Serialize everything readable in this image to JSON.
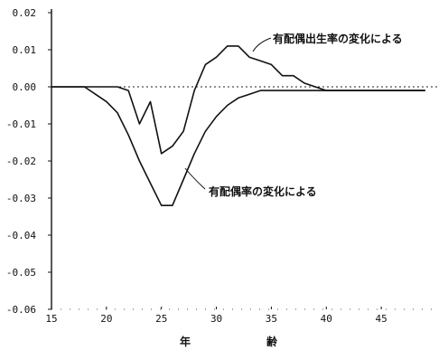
{
  "chart_data": {
    "type": "line",
    "title": "",
    "xlabel_chars": [
      "年",
      "齢"
    ],
    "ylabel": "",
    "xlim": [
      15,
      50
    ],
    "ylim": [
      -0.06,
      0.02
    ],
    "xticks": [
      15,
      20,
      25,
      30,
      35,
      40,
      45
    ],
    "yticks": [
      {
        "value": 0.02,
        "label": "0.02"
      },
      {
        "value": 0.01,
        "label": "0.01"
      },
      {
        "value": 0.0,
        "label": "0.00"
      },
      {
        "value": -0.01,
        "label": "-0.01"
      },
      {
        "value": -0.02,
        "label": "-0.02"
      },
      {
        "value": -0.03,
        "label": "-0.03"
      },
      {
        "value": -0.04,
        "label": "-0.04"
      },
      {
        "value": -0.05,
        "label": "-0.05"
      },
      {
        "value": -0.06,
        "label": "-0.06"
      }
    ],
    "grid": false,
    "reference_line": 0.0,
    "annotations": [
      "有配偶出生率の変化による",
      "有配偶率の変化による"
    ],
    "series": [
      {
        "label_ref": 0,
        "style": "solid",
        "x": [
          15,
          16,
          17,
          18,
          19,
          20,
          21,
          22,
          23,
          24,
          25,
          26,
          27,
          28,
          29,
          30,
          31,
          32,
          33,
          34,
          35,
          36,
          37,
          38,
          39,
          40,
          41,
          42,
          43,
          44,
          45,
          46,
          47,
          48,
          49
        ],
        "y": [
          0.0,
          0.0,
          0.0,
          0.0,
          0.0,
          0.0,
          0.0,
          -0.001,
          -0.01,
          -0.004,
          -0.018,
          -0.016,
          -0.012,
          -0.001,
          0.006,
          0.008,
          0.011,
          0.011,
          0.008,
          0.007,
          0.006,
          0.003,
          0.003,
          0.001,
          0.0,
          -0.001,
          -0.001,
          -0.001,
          -0.001,
          -0.001,
          -0.001,
          -0.001,
          -0.001,
          -0.001,
          -0.001
        ]
      },
      {
        "label_ref": 1,
        "style": "solid",
        "x": [
          15,
          16,
          17,
          18,
          19,
          20,
          21,
          22,
          23,
          24,
          25,
          26,
          27,
          28,
          29,
          30,
          31,
          32,
          33,
          34,
          35,
          36,
          37,
          38,
          39,
          40,
          41,
          42,
          43,
          44,
          45,
          46,
          47,
          48,
          49
        ],
        "y": [
          0.0,
          0.0,
          0.0,
          0.0,
          -0.002,
          -0.004,
          -0.007,
          -0.013,
          -0.02,
          -0.026,
          -0.032,
          -0.032,
          -0.025,
          -0.018,
          -0.012,
          -0.008,
          -0.005,
          -0.003,
          -0.002,
          -0.001,
          -0.001,
          -0.001,
          -0.001,
          -0.001,
          -0.001,
          -0.001,
          -0.001,
          -0.001,
          -0.001,
          -0.001,
          -0.001,
          -0.001,
          -0.001,
          -0.001,
          -0.001
        ]
      }
    ]
  }
}
